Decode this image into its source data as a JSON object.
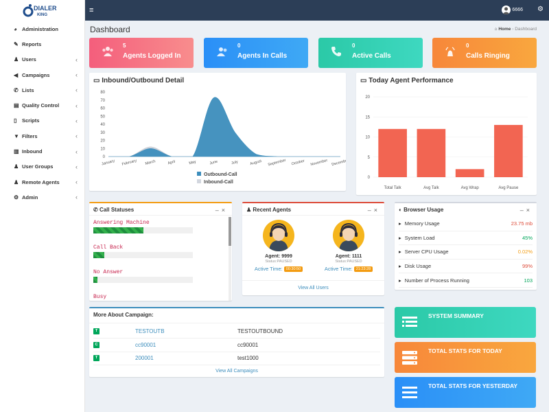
{
  "brand": {
    "line1": "DIALER",
    "line2": "KING"
  },
  "sidebar": {
    "items": [
      {
        "label": "Administration",
        "icon": "dashboard-icon",
        "chevron": false
      },
      {
        "label": "Reports",
        "icon": "edit-icon",
        "chevron": false
      },
      {
        "label": "Users",
        "icon": "user-icon",
        "chevron": true
      },
      {
        "label": "Campaigns",
        "icon": "bullhorn-icon",
        "chevron": true
      },
      {
        "label": "Lists",
        "icon": "phone-icon",
        "chevron": true
      },
      {
        "label": "Quality Control",
        "icon": "list-icon",
        "chevron": true
      },
      {
        "label": "Scripts",
        "icon": "file-icon",
        "chevron": true
      },
      {
        "label": "Filters",
        "icon": "filter-icon",
        "chevron": true
      },
      {
        "label": "Inbound",
        "icon": "bar-chart-icon",
        "chevron": true
      },
      {
        "label": "User Groups",
        "icon": "users-icon",
        "chevron": true
      },
      {
        "label": "Remote Agents",
        "icon": "user-secret-icon",
        "chevron": true
      },
      {
        "label": "Admin",
        "icon": "cog-icon",
        "chevron": true
      }
    ]
  },
  "topbar": {
    "user": "6666"
  },
  "page": {
    "title": "Dashboard",
    "breadcrumb_home": "Home",
    "breadcrumb_sep": "›",
    "breadcrumb_current": "Dashboard"
  },
  "tiles": [
    {
      "value": "5",
      "label": "Agents Logged In",
      "color": "#f45e7c"
    },
    {
      "value": "0",
      "label": "Agents In Calls",
      "color": "#2a8ff7"
    },
    {
      "value": "0",
      "label": "Active Calls",
      "color": "#2bc9a7"
    },
    {
      "value": "0",
      "label": "Calls Ringing",
      "color": "#f7a13a"
    }
  ],
  "inout": {
    "title": "Inbound/Outbound Detail",
    "legend": [
      "Outbound-Call",
      "Inbound-Call"
    ],
    "chart_data": {
      "type": "area",
      "categories": [
        "January",
        "February",
        "March",
        "April",
        "May",
        "June",
        "July",
        "August",
        "September",
        "October",
        "November",
        "December"
      ],
      "yticks": [
        0,
        10,
        20,
        30,
        40,
        50,
        60,
        70,
        80
      ],
      "ylim": [
        0,
        80
      ],
      "series": [
        {
          "name": "Outbound-Call",
          "values": [
            0,
            0,
            10,
            0,
            0,
            73,
            30,
            3,
            0,
            0,
            0,
            0
          ]
        },
        {
          "name": "Inbound-Call",
          "values": [
            0,
            0,
            12,
            0,
            0,
            0,
            0,
            0,
            0,
            0,
            0,
            0
          ]
        }
      ]
    }
  },
  "perf": {
    "title": "Today Agent Performance",
    "chart_data": {
      "type": "bar",
      "categories": [
        "Total Talk",
        "Avg Talk",
        "Avg Wrap",
        "Avg Pause"
      ],
      "values": [
        12,
        12,
        2,
        13
      ],
      "yticks": [
        0,
        5,
        10,
        15,
        20
      ],
      "ylim": [
        0,
        20
      ]
    }
  },
  "call_statuses": {
    "title": "Call Statuses",
    "items": [
      {
        "label": "Answering Machine",
        "pct": 50
      },
      {
        "label": "Call Back",
        "pct": 11
      },
      {
        "label": "No Answer",
        "pct": 4
      },
      {
        "label": "Busy",
        "pct": 0
      }
    ]
  },
  "recent_agents": {
    "title": "Recent Agents",
    "agents": [
      {
        "name": "Agent: 9999",
        "status": "Status:PAUSED",
        "time_label": "Active Time:",
        "time": "00:30:50"
      },
      {
        "name": "Agent: 1111",
        "status": "Status:PAUSED",
        "time_label": "Active Time:",
        "time": "21:23:28"
      }
    ],
    "view_all": "View All Users"
  },
  "browser_usage": {
    "title": "Browser Usage",
    "rows": [
      {
        "label": "Memory Usage",
        "value": "23.75 mb",
        "color": "#dd4b39"
      },
      {
        "label": "System Load",
        "value": "45%",
        "color": "#00a65a"
      },
      {
        "label": "Server CPU Usage",
        "value": "0.02%",
        "color": "#f39c12"
      },
      {
        "label": "Disk Usage",
        "value": "99%",
        "color": "#dd4b39"
      },
      {
        "label": "Number of Process Running",
        "value": "103",
        "color": "#00a65a"
      }
    ]
  },
  "campaigns": {
    "title": "More About Campaign:",
    "rows": [
      {
        "tag": "T",
        "id": "TESTOUTB",
        "name": "TESTOUTBOUND"
      },
      {
        "tag": "C",
        "id": "cc90001",
        "name": "cc90001"
      },
      {
        "tag": "T",
        "id": "200001",
        "name": "test1000"
      }
    ],
    "view_all": "View All Campaigns"
  },
  "summary": [
    {
      "label": "SYSTEM SUMMARY"
    },
    {
      "label": "TOTAL STATS FOR TODAY"
    },
    {
      "label": "TOTAL STATS FOR YESTERDAY"
    }
  ]
}
